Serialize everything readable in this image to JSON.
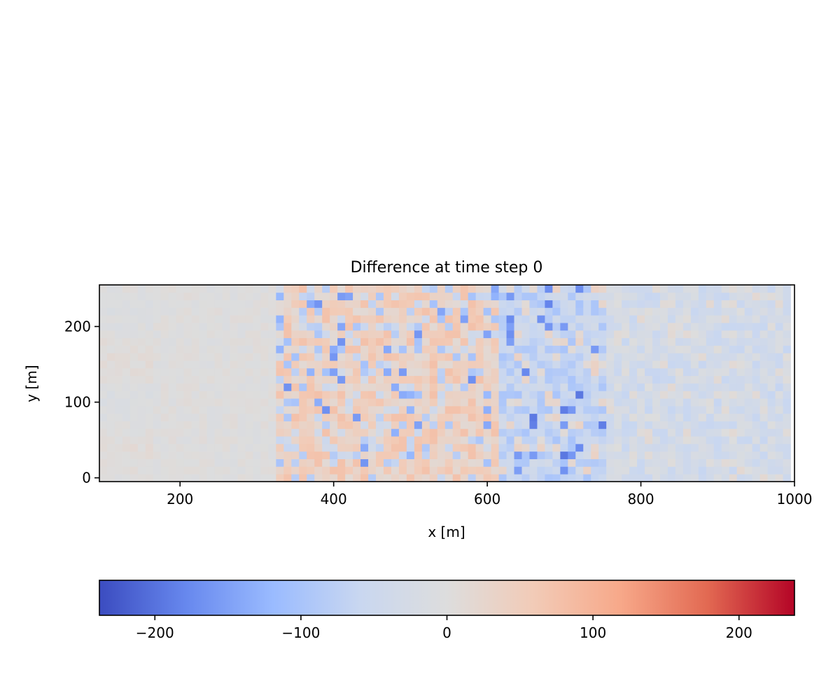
{
  "chart_data": {
    "type": "heatmap",
    "title": "Difference at time step 0",
    "xlabel": "x [m]",
    "ylabel": "y [m]",
    "xlim": [
      95,
      1000
    ],
    "ylim": [
      -5,
      255
    ],
    "x_ticks": [
      200,
      400,
      600,
      800,
      1000
    ],
    "x_tick_labels": [
      "200",
      "400",
      "600",
      "800",
      "1000"
    ],
    "y_ticks": [
      0,
      100,
      200
    ],
    "y_tick_labels": [
      "0",
      "100",
      "200"
    ],
    "cell_size": 10,
    "x_centers_range": [
      100,
      995
    ],
    "y_centers_range": [
      0,
      250
    ],
    "colormap": "coolwarm",
    "grid": false,
    "colorbar": {
      "orientation": "horizontal",
      "placement": "bottom",
      "range": [
        -238,
        238
      ],
      "ticks": [
        -200,
        -100,
        0,
        100,
        200
      ],
      "tick_labels": [
        "−200",
        "−100",
        "0",
        "100",
        "200"
      ],
      "colors": [
        "#3b4cc0",
        "#6788ee",
        "#9abbff",
        "#c9d7f0",
        "#dddddd",
        "#f2cbb7",
        "#f7a889",
        "#e26952",
        "#b40426"
      ]
    },
    "field_description_regions": [
      {
        "x_range": [
          100,
          330
        ],
        "value_range": [
          -10,
          10
        ],
        "pattern": "near zero"
      },
      {
        "x_range": [
          330,
          620
        ],
        "value_range": [
          -160,
          75
        ],
        "pattern": "mostly positive with scattered negatives"
      },
      {
        "x_range": [
          620,
          760
        ],
        "value_range": [
          -190,
          40
        ],
        "pattern": "mixed, mostly negative"
      },
      {
        "x_range": [
          760,
          1000
        ],
        "value_range": [
          -80,
          20
        ],
        "pattern": "weakly negative"
      }
    ]
  }
}
